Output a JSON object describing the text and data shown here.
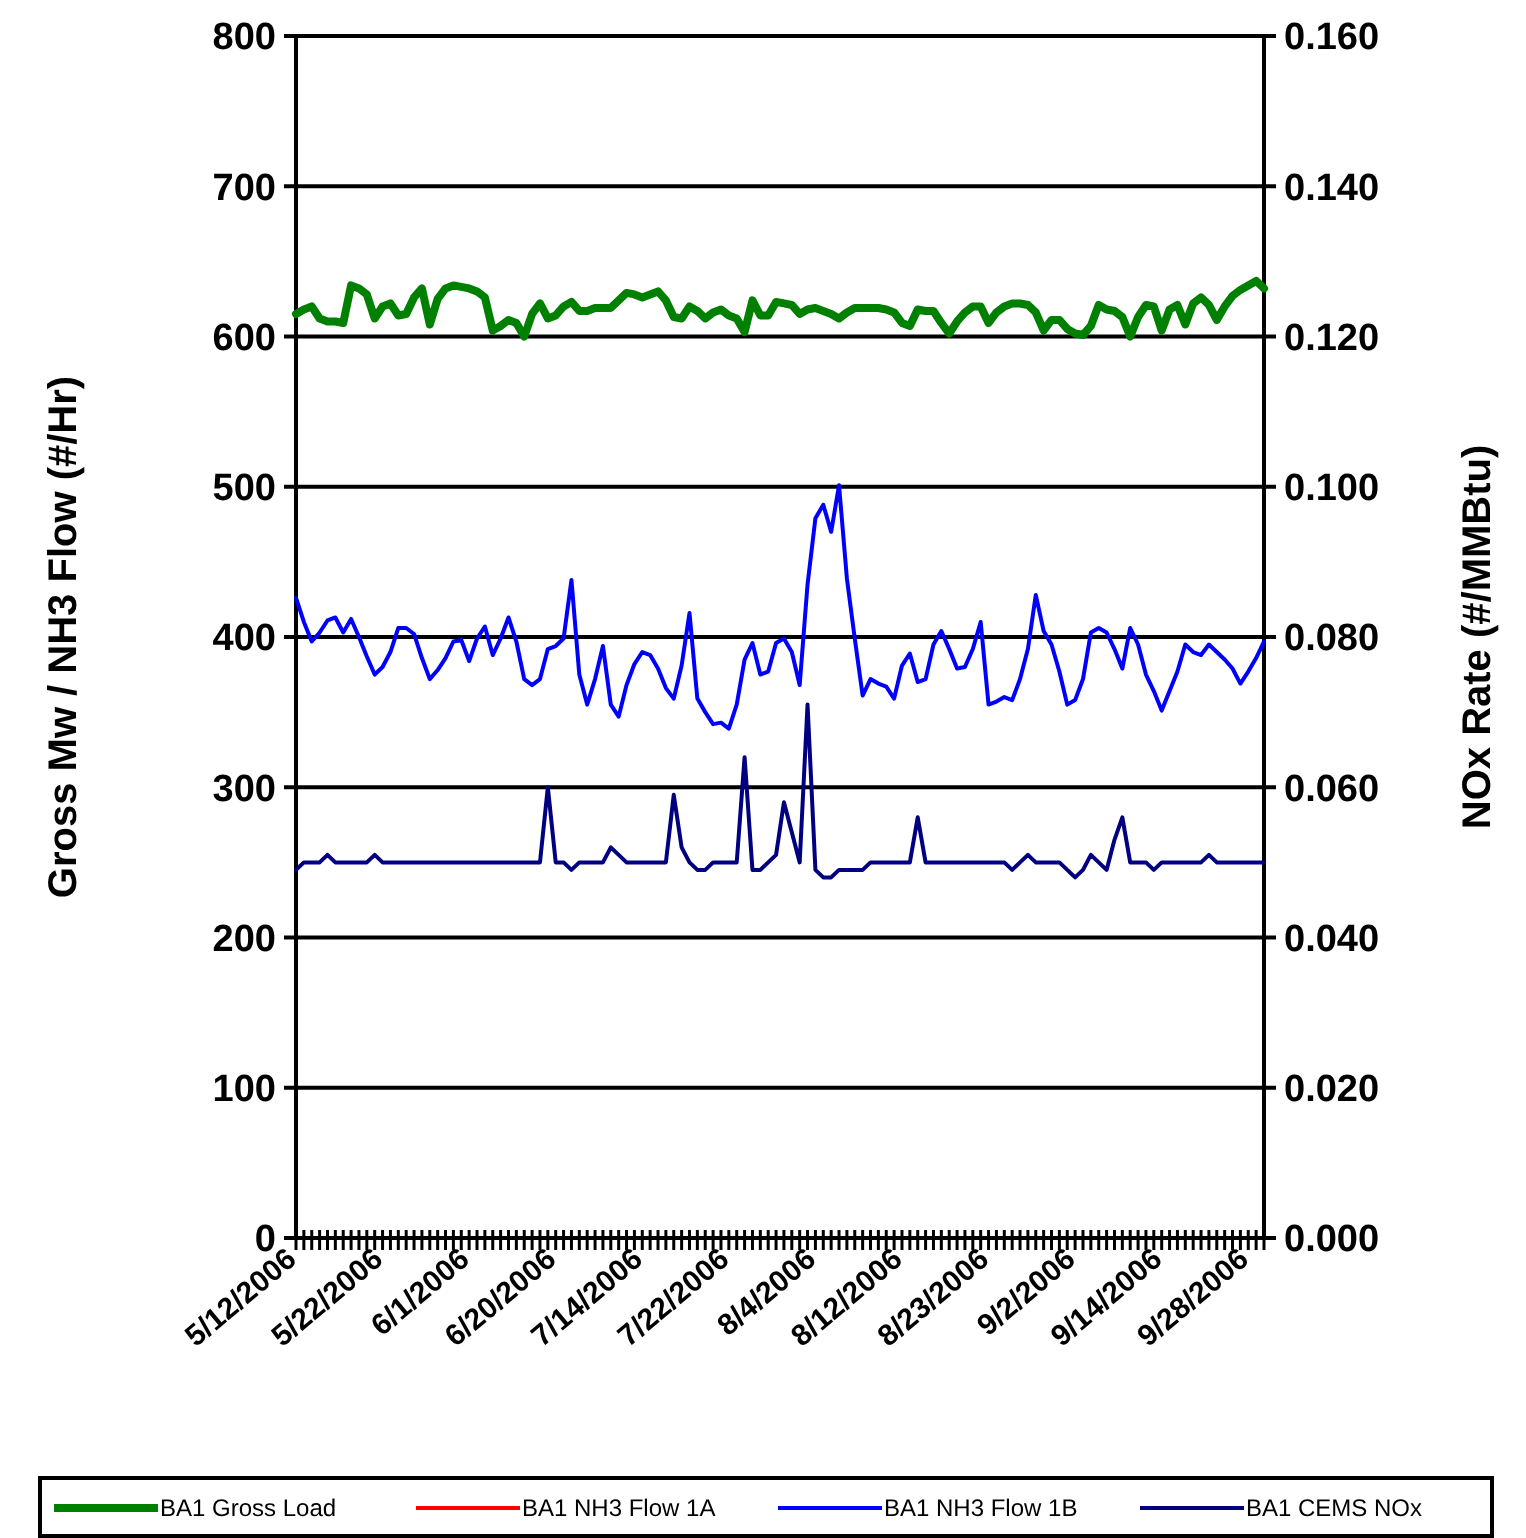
{
  "chart_data": {
    "type": "line",
    "categories": [
      "5/12/2006",
      null,
      null,
      null,
      null,
      null,
      null,
      null,
      null,
      null,
      null,
      "5/22/2006",
      null,
      null,
      null,
      null,
      null,
      null,
      null,
      null,
      null,
      null,
      "6/1/2006",
      null,
      null,
      null,
      null,
      null,
      null,
      null,
      null,
      null,
      null,
      "6/20/2006",
      null,
      null,
      null,
      null,
      null,
      null,
      null,
      null,
      null,
      null,
      "7/14/2006",
      null,
      null,
      null,
      null,
      null,
      null,
      null,
      null,
      null,
      null,
      "7/22/2006",
      null,
      null,
      null,
      null,
      null,
      null,
      null,
      null,
      null,
      null,
      "8/4/2006",
      null,
      null,
      null,
      null,
      null,
      null,
      null,
      null,
      null,
      null,
      "8/12/2006",
      null,
      null,
      null,
      null,
      null,
      null,
      null,
      null,
      null,
      null,
      "8/23/2006",
      null,
      null,
      null,
      null,
      null,
      null,
      null,
      null,
      null,
      null,
      "9/2/2006",
      null,
      null,
      null,
      null,
      null,
      null,
      null,
      null,
      null,
      null,
      "9/14/2006",
      null,
      null,
      null,
      null,
      null,
      null,
      null,
      null,
      null,
      null,
      "9/28/2006",
      null,
      null
    ],
    "ylabel": "Gross Mw / NH3 Flow (#/Hr)",
    "y2label": "NOx Rate (#/MMBtu)",
    "ylim": [
      0,
      800
    ],
    "yticks": [
      0,
      100,
      200,
      300,
      400,
      500,
      600,
      700,
      800
    ],
    "y2lim": [
      0,
      0.16
    ],
    "y2ticks": [
      {
        "value": 0,
        "label": "0.000"
      },
      {
        "value": 0.02,
        "label": "0.020"
      },
      {
        "value": 0.04,
        "label": "0.040"
      },
      {
        "value": 0.06,
        "label": "0.060"
      },
      {
        "value": 0.08,
        "label": "0.080"
      },
      {
        "value": 0.1,
        "label": "0.100"
      },
      {
        "value": 0.12,
        "label": "0.120"
      },
      {
        "value": 0.14,
        "label": "0.140"
      },
      {
        "value": 0.16,
        "label": "0.160"
      }
    ],
    "grid": "y",
    "legend": "bottom",
    "marker": "none",
    "line_style": "solid",
    "series": [
      {
        "name": "BA1 Gross Load",
        "color": "#008000",
        "values": [
          615,
          618,
          620,
          612,
          610,
          610,
          609,
          634,
          632,
          628,
          612,
          620,
          622,
          614,
          615,
          626,
          632,
          608,
          625,
          632,
          634,
          633,
          632,
          630,
          626,
          604,
          607,
          611,
          609,
          600,
          615,
          622,
          612,
          614,
          620,
          623,
          617,
          617,
          619,
          619,
          619,
          624,
          629,
          628,
          626,
          628,
          630,
          624,
          613,
          612,
          620,
          617,
          612,
          616,
          618,
          614,
          612,
          603,
          624,
          614,
          614,
          623,
          622,
          621,
          615,
          618,
          619,
          617,
          615,
          612,
          616,
          619,
          619,
          619,
          619,
          618,
          616,
          609,
          607,
          618,
          617,
          617,
          609,
          602,
          610,
          616,
          620,
          620,
          609,
          616,
          620,
          622,
          622,
          621,
          616,
          604,
          611,
          611,
          605,
          602,
          601,
          607,
          621,
          618,
          617,
          613,
          600,
          613,
          621,
          620,
          604,
          618,
          621,
          608,
          622,
          626,
          621,
          611,
          620,
          627,
          631,
          634,
          637,
          632
        ]
      },
      {
        "name": "BA1 NH3 Flow 1A",
        "color": "#ff0000",
        "values": [
          null,
          null,
          null,
          null,
          null,
          null,
          null,
          null,
          null,
          null,
          null,
          null,
          null,
          null,
          null,
          null,
          null,
          null,
          null,
          null,
          null,
          null,
          null,
          null,
          null,
          null,
          null,
          null,
          null,
          null,
          null,
          null,
          null,
          null,
          null,
          null,
          null,
          null,
          null,
          null,
          null,
          null,
          null,
          null,
          null,
          null,
          null,
          null,
          null,
          null,
          null,
          null,
          null,
          null,
          null,
          null,
          null,
          null,
          null,
          null,
          null,
          null,
          null,
          null,
          null,
          null,
          null,
          null,
          null,
          null,
          null,
          null,
          null,
          null,
          null,
          null,
          null,
          null,
          null,
          null,
          null,
          null,
          null,
          null,
          null,
          null,
          null,
          null,
          null,
          null,
          null,
          null,
          null,
          null,
          null,
          null,
          null,
          null,
          null,
          null,
          null,
          null,
          null,
          null,
          null,
          null,
          null,
          null,
          null,
          null,
          null,
          null,
          null,
          null,
          null,
          null,
          null,
          null,
          null,
          null,
          null,
          null,
          null,
          null
        ]
      },
      {
        "name": "BA1 NH3 Flow 1B",
        "color": "#0000ff",
        "values": [
          426,
          410,
          397,
          403,
          411,
          413,
          403,
          412,
          400,
          387,
          375,
          380,
          390,
          406,
          406,
          402,
          386,
          372,
          378,
          386,
          397,
          398,
          384,
          399,
          407,
          388,
          399,
          413,
          397,
          372,
          368,
          372,
          392,
          394,
          399,
          438,
          375,
          355,
          372,
          394,
          355,
          347,
          368,
          382,
          390,
          388,
          379,
          366,
          359,
          381,
          416,
          359,
          350,
          342,
          343,
          339,
          355,
          385,
          396,
          375,
          377,
          396,
          399,
          390,
          368,
          435,
          479,
          488,
          470,
          501,
          439,
          399,
          361,
          372,
          369,
          367,
          359,
          381,
          389,
          370,
          372,
          395,
          404,
          392,
          379,
          380,
          392,
          410,
          355,
          357,
          360,
          358,
          372,
          392,
          428,
          404,
          395,
          377,
          355,
          358,
          372,
          403,
          406,
          403,
          392,
          379,
          406,
          395,
          375,
          364,
          351,
          364,
          377,
          395,
          390,
          388,
          395,
          390,
          385,
          379,
          369,
          377,
          386,
          397
        ]
      },
      {
        "name": "BA1 CEMS NOx",
        "color": "#000080",
        "axis": "y2",
        "values": [
          0.049,
          0.05,
          0.05,
          0.05,
          0.051,
          0.05,
          0.05,
          0.05,
          0.05,
          0.05,
          0.051,
          0.05,
          0.05,
          0.05,
          0.05,
          0.05,
          0.05,
          0.05,
          0.05,
          0.05,
          0.05,
          0.05,
          0.05,
          0.05,
          0.05,
          0.05,
          0.05,
          0.05,
          0.05,
          0.05,
          0.05,
          0.05,
          0.06,
          0.05,
          0.05,
          0.049,
          0.05,
          0.05,
          0.05,
          0.05,
          0.052,
          0.051,
          0.05,
          0.05,
          0.05,
          0.05,
          0.05,
          0.05,
          0.059,
          0.052,
          0.05,
          0.049,
          0.049,
          0.05,
          0.05,
          0.05,
          0.05,
          0.064,
          0.049,
          0.049,
          0.05,
          0.051,
          0.058,
          0.054,
          0.05,
          0.071,
          0.049,
          0.048,
          0.048,
          0.049,
          0.049,
          0.049,
          0.049,
          0.05,
          0.05,
          0.05,
          0.05,
          0.05,
          0.05,
          0.056,
          0.05,
          0.05,
          0.05,
          0.05,
          0.05,
          0.05,
          0.05,
          0.05,
          0.05,
          0.05,
          0.05,
          0.049,
          0.05,
          0.051,
          0.05,
          0.05,
          0.05,
          0.05,
          0.049,
          0.048,
          0.049,
          0.051,
          0.05,
          0.049,
          0.053,
          0.056,
          0.05,
          0.05,
          0.05,
          0.049,
          0.05,
          0.05,
          0.05,
          0.05,
          0.05,
          0.05,
          0.051,
          0.05,
          0.05,
          0.05,
          0.05,
          0.05,
          0.05,
          0.05
        ]
      }
    ]
  }
}
